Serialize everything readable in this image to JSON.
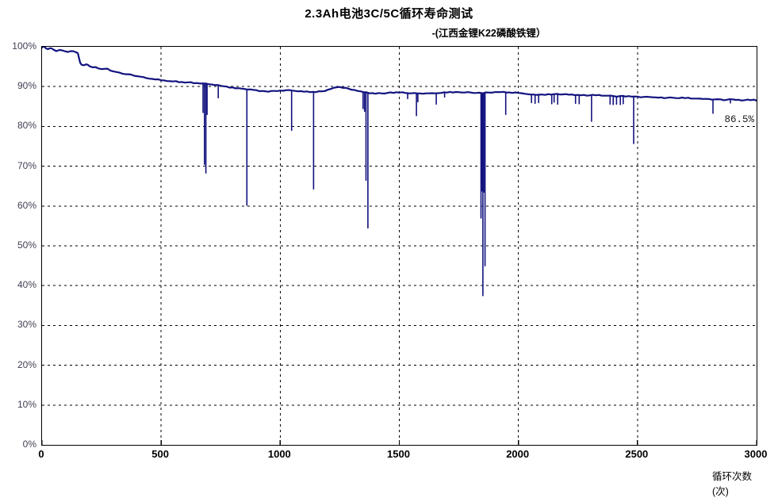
{
  "chart_data": {
    "type": "line",
    "title": "2.3Ah电池3C/5C循环寿命测试",
    "subtitle": "-(江西金锂K22磷酸铁锂）",
    "xlabel": "循环次数(次)",
    "ylabel": "",
    "xlim": [
      0,
      3000
    ],
    "ylim_percent": [
      0,
      100
    ],
    "grid": true,
    "legend": "none",
    "annotation": {
      "text": "86.5%"
    },
    "colors": {
      "line": "#12127f",
      "grid": "#000000",
      "y_tick_label": "#3f3f54",
      "x_tick_label": "#000000"
    },
    "x_ticks": [
      [
        0,
        "0"
      ],
      [
        500,
        "500"
      ],
      [
        1000,
        "1000"
      ],
      [
        1500,
        "1500"
      ],
      [
        2000,
        "2000"
      ],
      [
        2500,
        "2500"
      ],
      [
        3000,
        "3000"
      ]
    ],
    "y_ticks": [
      [
        0,
        "0%"
      ],
      [
        10,
        "10%"
      ],
      [
        20,
        "20%"
      ],
      [
        30,
        "30%"
      ],
      [
        40,
        "40%"
      ],
      [
        50,
        "50%"
      ],
      [
        60,
        "60%"
      ],
      [
        70,
        "70%"
      ],
      [
        80,
        "80%"
      ],
      [
        90,
        "90%"
      ],
      [
        100,
        "100%"
      ]
    ],
    "series": [
      {
        "name": "capacity-retention",
        "points": [
          [
            0,
            99.8
          ],
          [
            10,
            100.0
          ],
          [
            25,
            99.4
          ],
          [
            40,
            99.6
          ],
          [
            60,
            98.9
          ],
          [
            75,
            99.2
          ],
          [
            90,
            99.0
          ],
          [
            110,
            98.7
          ],
          [
            130,
            98.9
          ],
          [
            150,
            98.4
          ],
          [
            160,
            96.0
          ],
          [
            170,
            95.4
          ],
          [
            185,
            95.6
          ],
          [
            200,
            95.1
          ],
          [
            225,
            94.9
          ],
          [
            250,
            94.4
          ],
          [
            275,
            94.5
          ],
          [
            300,
            93.8
          ],
          [
            325,
            93.5
          ],
          [
            350,
            93.1
          ],
          [
            375,
            93.0
          ],
          [
            400,
            92.6
          ],
          [
            425,
            92.4
          ],
          [
            450,
            92.0
          ],
          [
            475,
            91.8
          ],
          [
            500,
            91.6
          ],
          [
            525,
            91.4
          ],
          [
            550,
            91.3
          ],
          [
            575,
            91.1
          ],
          [
            600,
            91.0
          ],
          [
            625,
            91.1
          ],
          [
            650,
            90.9
          ],
          [
            675,
            90.8
          ],
          [
            700,
            90.6
          ],
          [
            725,
            90.4
          ],
          [
            750,
            90.2
          ],
          [
            775,
            90.0
          ],
          [
            800,
            89.8
          ],
          [
            825,
            89.6
          ],
          [
            850,
            89.4
          ],
          [
            875,
            89.3
          ],
          [
            900,
            89.1
          ],
          [
            925,
            88.9
          ],
          [
            950,
            88.7
          ],
          [
            975,
            88.9
          ],
          [
            1000,
            89.0
          ],
          [
            1025,
            89.1
          ],
          [
            1050,
            89.0
          ],
          [
            1075,
            88.8
          ],
          [
            1100,
            88.7
          ],
          [
            1125,
            88.6
          ],
          [
            1150,
            88.6
          ],
          [
            1175,
            88.8
          ],
          [
            1200,
            89.2
          ],
          [
            1225,
            89.7
          ],
          [
            1250,
            89.9
          ],
          [
            1275,
            89.7
          ],
          [
            1300,
            89.2
          ],
          [
            1325,
            88.9
          ],
          [
            1350,
            88.6
          ],
          [
            1375,
            88.3
          ],
          [
            1400,
            88.2
          ],
          [
            1425,
            88.3
          ],
          [
            1450,
            88.4
          ],
          [
            1475,
            88.4
          ],
          [
            1500,
            88.5
          ],
          [
            1525,
            88.4
          ],
          [
            1550,
            88.3
          ],
          [
            1575,
            88.3
          ],
          [
            1600,
            88.2
          ],
          [
            1625,
            88.3
          ],
          [
            1650,
            88.3
          ],
          [
            1675,
            88.4
          ],
          [
            1700,
            88.5
          ],
          [
            1725,
            88.5
          ],
          [
            1750,
            88.6
          ],
          [
            1775,
            88.5
          ],
          [
            1800,
            88.5
          ],
          [
            1825,
            88.4
          ],
          [
            1850,
            88.3
          ],
          [
            1875,
            88.5
          ],
          [
            1900,
            88.6
          ],
          [
            1925,
            88.6
          ],
          [
            1950,
            88.5
          ],
          [
            1975,
            88.4
          ],
          [
            2000,
            88.4
          ],
          [
            2025,
            88.2
          ],
          [
            2050,
            88.0
          ],
          [
            2075,
            87.9
          ],
          [
            2100,
            88.0
          ],
          [
            2125,
            88.1
          ],
          [
            2150,
            88.1
          ],
          [
            2175,
            88.0
          ],
          [
            2200,
            88.1
          ],
          [
            2225,
            88.0
          ],
          [
            2250,
            87.9
          ],
          [
            2275,
            87.9
          ],
          [
            2300,
            87.8
          ],
          [
            2325,
            87.8
          ],
          [
            2350,
            87.7
          ],
          [
            2375,
            87.7
          ],
          [
            2400,
            87.6
          ],
          [
            2425,
            87.6
          ],
          [
            2450,
            87.5
          ],
          [
            2475,
            87.5
          ],
          [
            2500,
            87.5
          ],
          [
            2525,
            87.4
          ],
          [
            2550,
            87.4
          ],
          [
            2575,
            87.3
          ],
          [
            2600,
            87.3
          ],
          [
            2625,
            87.2
          ],
          [
            2650,
            87.2
          ],
          [
            2675,
            87.1
          ],
          [
            2700,
            87.1
          ],
          [
            2725,
            87.0
          ],
          [
            2750,
            87.0
          ],
          [
            2775,
            86.9
          ],
          [
            2800,
            86.9
          ],
          [
            2825,
            86.8
          ],
          [
            2850,
            86.8
          ],
          [
            2875,
            86.7
          ],
          [
            2900,
            86.8
          ],
          [
            2925,
            86.7
          ],
          [
            2950,
            86.6
          ],
          [
            2975,
            86.6
          ],
          [
            3000,
            86.5
          ]
        ]
      }
    ],
    "spikes": [
      [
        676,
        83.5
      ],
      [
        682,
        70.5
      ],
      [
        688,
        68.3
      ],
      [
        693,
        83.0
      ],
      [
        740,
        87.2
      ],
      [
        860,
        60.2
      ],
      [
        1048,
        79.0
      ],
      [
        1140,
        64.3
      ],
      [
        1348,
        84.5
      ],
      [
        1354,
        83.8
      ],
      [
        1360,
        66.5
      ],
      [
        1368,
        54.5
      ],
      [
        1535,
        87.0
      ],
      [
        1572,
        82.7
      ],
      [
        1578,
        86.2
      ],
      [
        1655,
        85.6
      ],
      [
        1690,
        87.4
      ],
      [
        1843,
        57.0
      ],
      [
        1847,
        63.8
      ],
      [
        1851,
        37.5
      ],
      [
        1855,
        63.5
      ],
      [
        1860,
        45.0
      ],
      [
        1947,
        83.0
      ],
      [
        2055,
        86.0
      ],
      [
        2070,
        85.8
      ],
      [
        2085,
        86.0
      ],
      [
        2140,
        85.7
      ],
      [
        2150,
        86.1
      ],
      [
        2165,
        85.6
      ],
      [
        2240,
        85.8
      ],
      [
        2255,
        85.7
      ],
      [
        2307,
        81.3
      ],
      [
        2385,
        85.6
      ],
      [
        2398,
        85.5
      ],
      [
        2412,
        85.6
      ],
      [
        2428,
        85.5
      ],
      [
        2440,
        85.7
      ],
      [
        2484,
        75.7
      ],
      [
        2817,
        83.3
      ],
      [
        2890,
        85.9
      ]
    ]
  }
}
